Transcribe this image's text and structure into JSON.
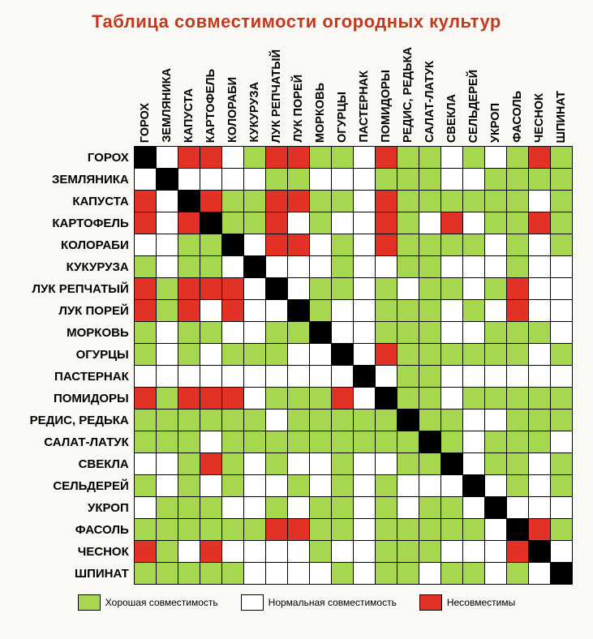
{
  "title": "Таблица совместимости огородных культур",
  "title_color": "#c23a1e",
  "colors": {
    "good": "#a7d64f",
    "normal": "#ffffff",
    "bad": "#e23125",
    "self": "#000000",
    "border": "#000000",
    "bg": "#fbf9f5"
  },
  "crops": [
    "ГОРОХ",
    "ЗЕМЛЯНИКА",
    "КАПУСТА",
    "КАРТОФЕЛЬ",
    "КОЛОРАБИ",
    "КУКУРУЗА",
    "ЛУК РЕПЧАТЫЙ",
    "ЛУК ПОРЕЙ",
    "МОРКОВЬ",
    "ОГУРЦЫ",
    "ПАСТЕРНАК",
    "ПОМИДОРЫ",
    "РЕДИС, РЕДЬКА",
    "САЛАТ-ЛАТУК",
    "СВЕКЛА",
    "СЕЛЬДЕРЕЙ",
    "УКРОП",
    "ФАСОЛЬ",
    "ЧЕСНОК",
    "ШПИНАТ"
  ],
  "matrix_codes": {
    "G": "good",
    "N": "normal",
    "B": "bad",
    "S": "self"
  },
  "matrix": [
    "SNBBNGBBGGNBGGNGNGBG",
    "NSNNNNGGNNNGGGNNGGGG",
    "BNSBGGBBGGNBGGGGGGNG",
    "BNBSGGBNGNNBGNBNGGBG",
    "NNGGSNBBNGNBGGGGNGNG",
    "GNGGNSNNNGNNGGNNNGNN",
    "BGBBBNSNGGNGNGGNGBNN",
    "BGBNBNNSGNNGGGNGNBNN",
    "GNGGNNGGSNNGGGNNGGGN",
    "GNGNGGGNNSNBGGGGGGNG",
    "NNNNNNNNNNSNGGNNNNNN",
    "BGBBBNGGGBNSGGNGGGGG",
    "GGGGGGNGGGGGSGGNNGGG",
    "GGGNGGGGGGGGGSGNGGGN",
    "NNGBGNGNNGNNGGSNGGNG",
    "GNGNGNNGNGNGNNNSNGNG",
    "NGGGNNGNGGNGNGGNSNNN",
    "GGGGGGBBGGNGGGGGNSBG",
    "BGNBNNNNGNNGGGNNNBSN",
    "GGGGGNNNNGNGGNGGNGNS"
  ],
  "legend": [
    {
      "key": "good",
      "label": "Хорошая совместимость"
    },
    {
      "key": "normal",
      "label": "Нормальная совместимость"
    },
    {
      "key": "bad",
      "label": "Несовместимы"
    }
  ]
}
